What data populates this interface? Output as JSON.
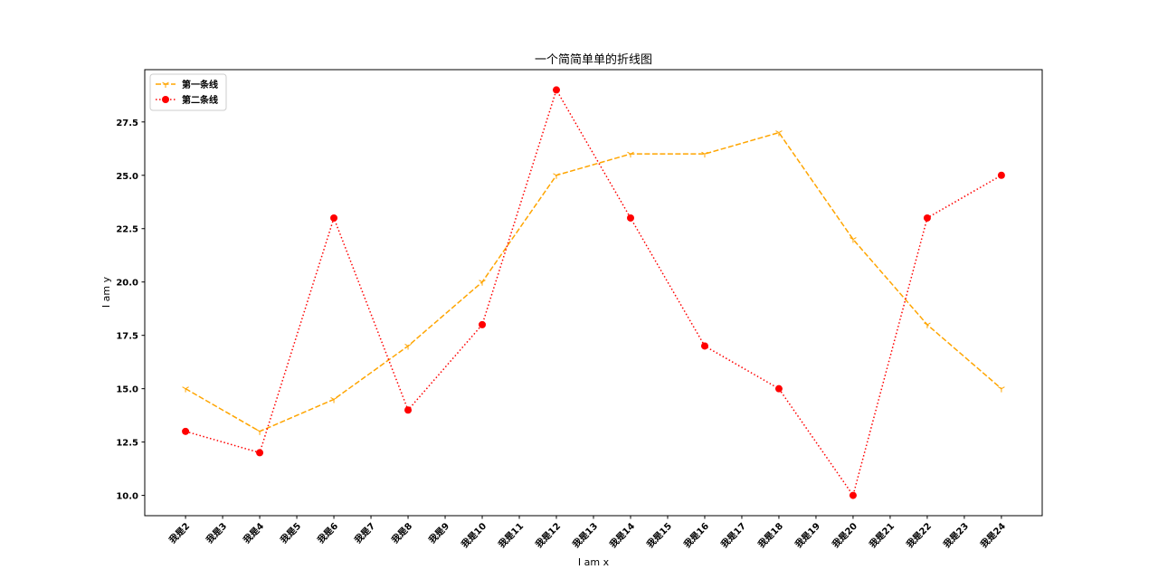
{
  "chart_data": {
    "type": "line",
    "title": "一个简简单单的折线图",
    "x_label": "I am x",
    "y_label": "I am y",
    "categories": [
      "我是2",
      "我是3",
      "我是4",
      "我是5",
      "我是6",
      "我是7",
      "我是8",
      "我是9",
      "我是10",
      "我是11",
      "我是12",
      "我是13",
      "我是14",
      "我是15",
      "我是16",
      "我是17",
      "我是18",
      "我是19",
      "我是20",
      "我是21",
      "我是22",
      "我是23",
      "我是24"
    ],
    "series": [
      {
        "name": "第一条线",
        "color": "orange",
        "line_style": "dashed",
        "marker": "tri_down",
        "x": [
          "我是2",
          "我是4",
          "我是6",
          "我是8",
          "我是10",
          "我是12",
          "我是14",
          "我是16",
          "我是18",
          "我是20",
          "我是22",
          "我是24"
        ],
        "values": [
          15,
          13,
          14.5,
          17,
          20,
          25,
          26,
          26,
          27,
          22,
          18,
          15
        ]
      },
      {
        "name": "第二条线",
        "color": "red",
        "line_style": "dotted",
        "marker": "circle",
        "x": [
          "我是2",
          "我是4",
          "我是6",
          "我是8",
          "我是10",
          "我是12",
          "我是14",
          "我是16",
          "我是18",
          "我是20",
          "我是22",
          "我是24"
        ],
        "values": [
          13,
          12,
          23,
          14,
          18,
          29,
          23,
          17,
          15,
          10,
          23,
          25
        ]
      }
    ],
    "ylim": [
      9.05,
      29.95
    ],
    "yticks": [
      {
        "value": 10,
        "label": "10.0"
      },
      12.5,
      {
        "value": 15,
        "label": "15.0"
      },
      17.5,
      {
        "value": 20,
        "label": "20.0"
      },
      22.5,
      {
        "value": 25,
        "label": "25.0"
      },
      27.5
    ],
    "legend": "upper left",
    "grid": false
  }
}
